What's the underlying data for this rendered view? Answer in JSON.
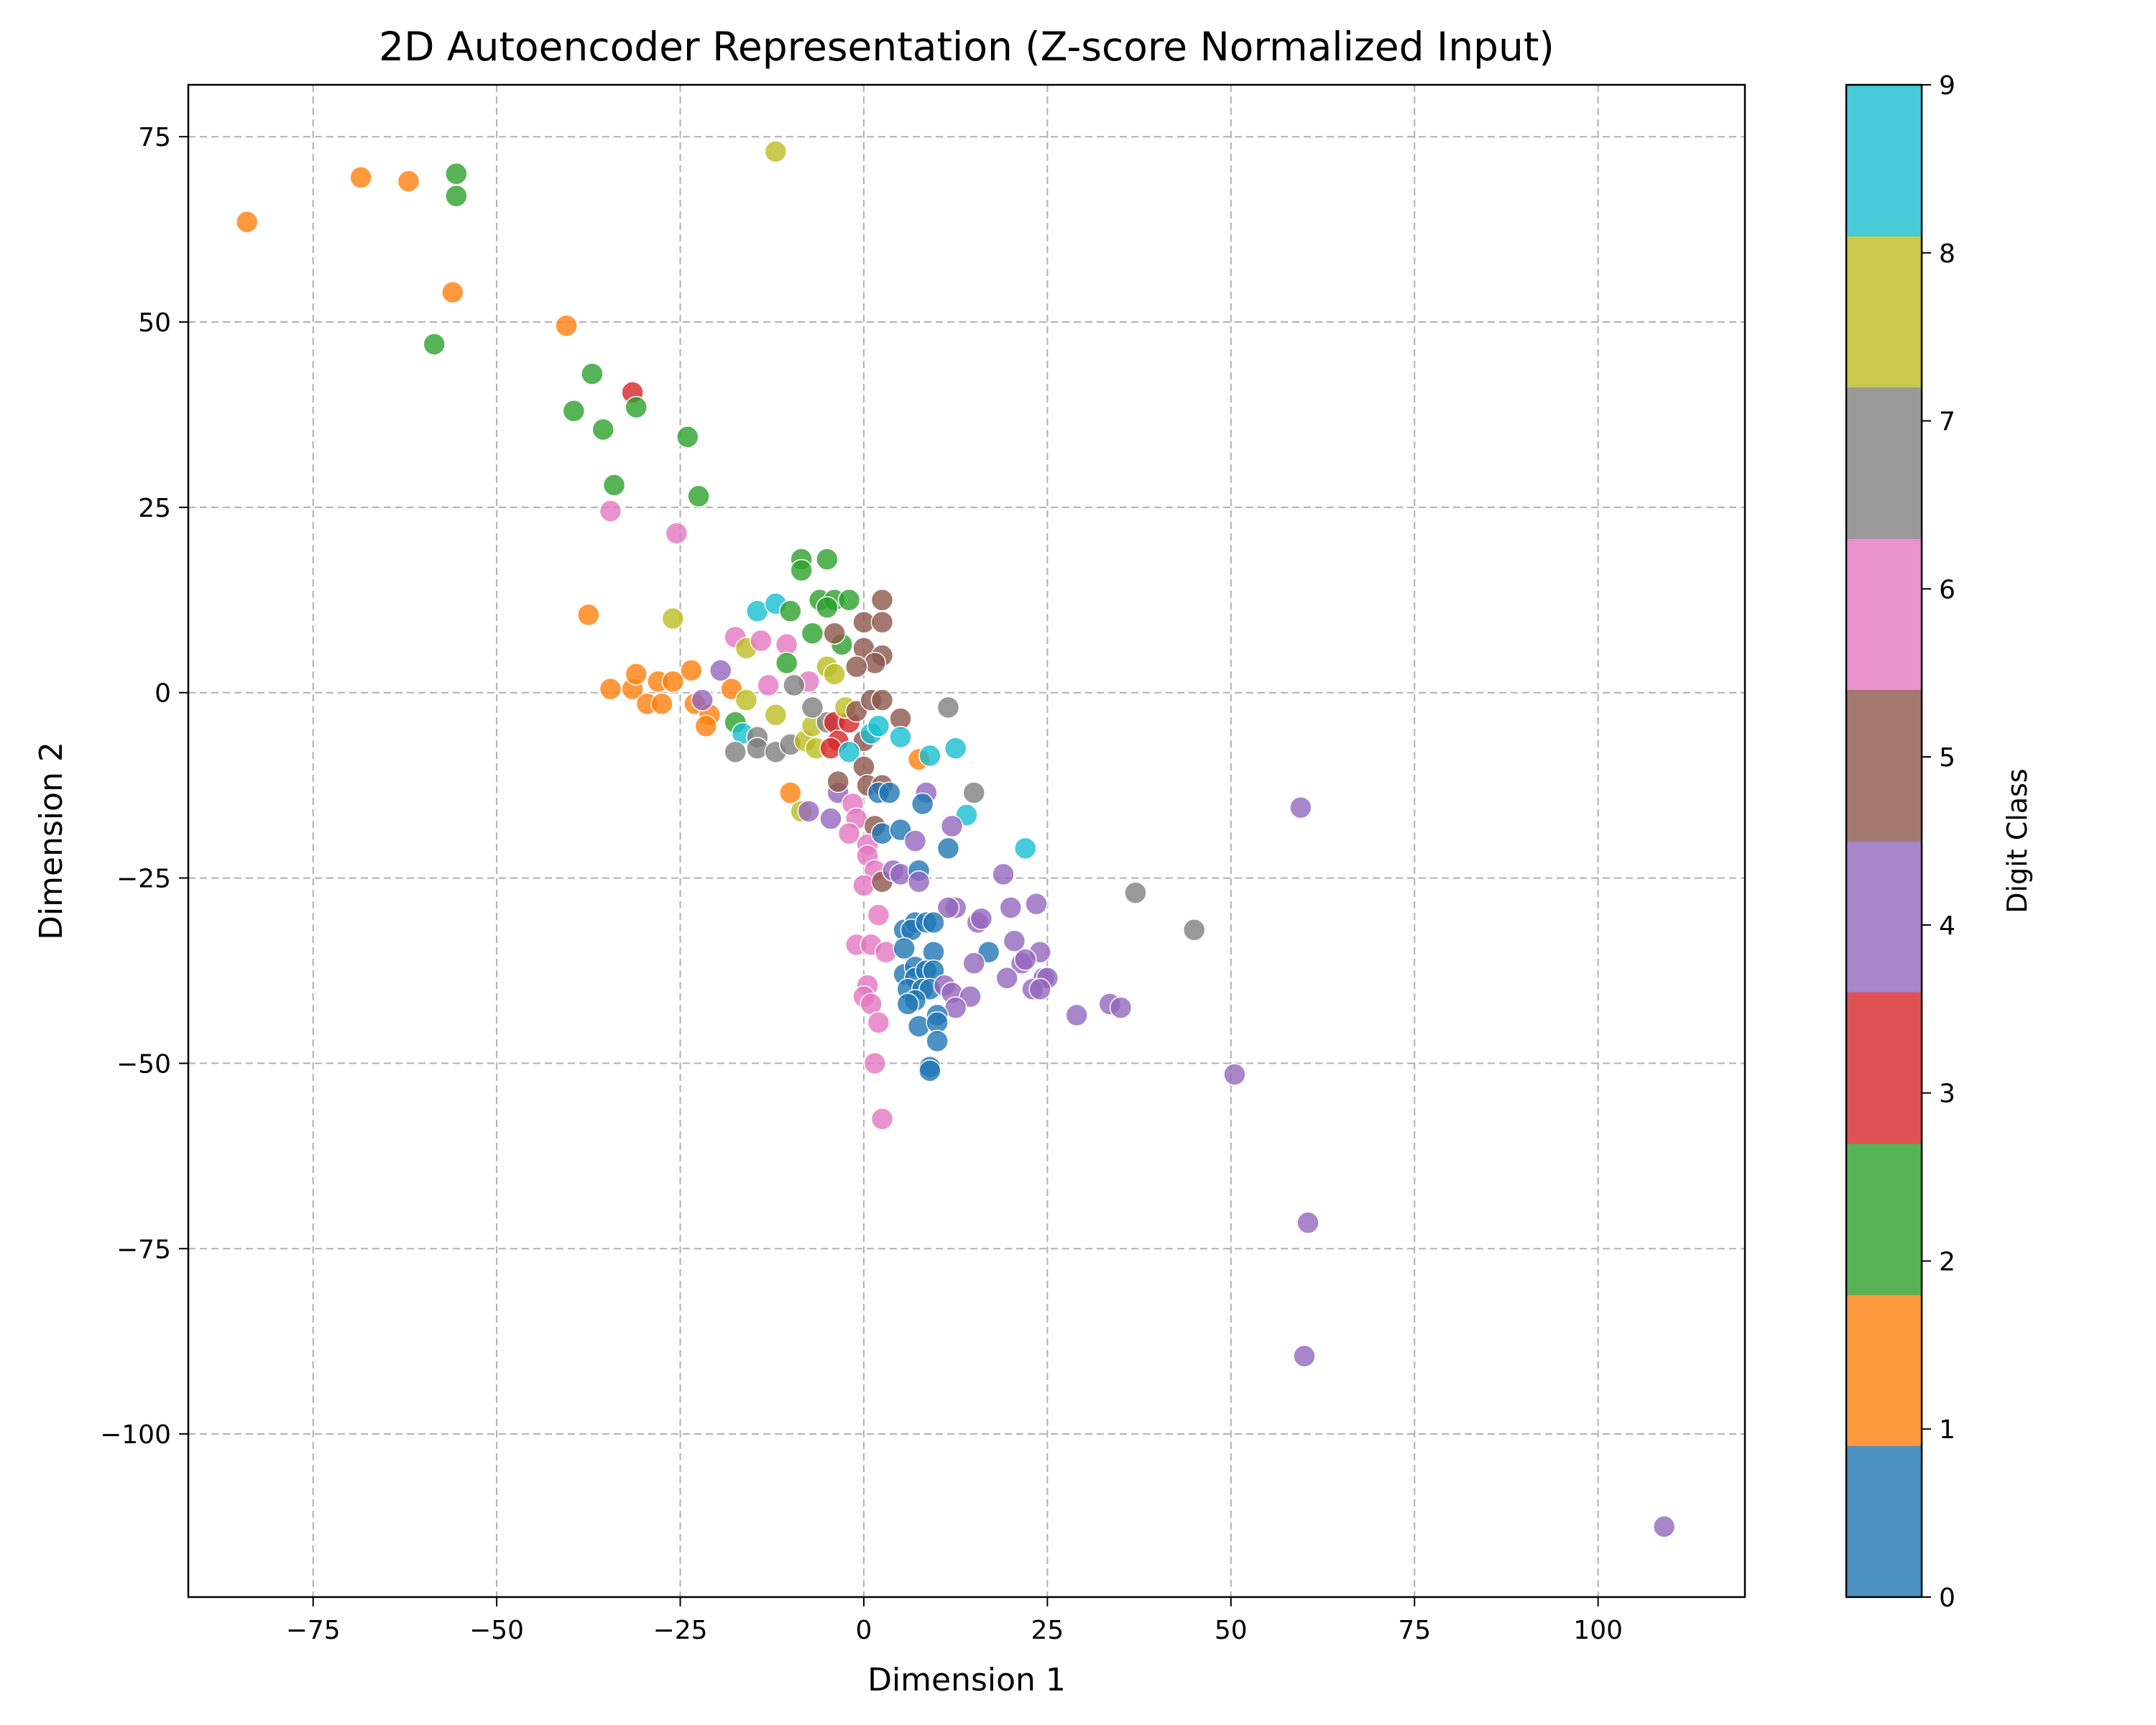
{
  "chart_data": {
    "type": "scatter",
    "title": "2D Autoencoder Representation (Z-score Normalized Input)",
    "xlabel": "Dimension 1",
    "ylabel": "Dimension 2",
    "xlim": [
      -92,
      120
    ],
    "ylim": [
      -122,
      82
    ],
    "x_ticks": [
      -75,
      -50,
      -25,
      0,
      25,
      50,
      75,
      100
    ],
    "y_ticks": [
      75,
      50,
      25,
      0,
      -25,
      -50,
      -75,
      -100
    ],
    "x_tick_labels": [
      "−75",
      "−50",
      "−25",
      "0",
      "25",
      "50",
      "75",
      "100"
    ],
    "y_tick_labels": [
      "75",
      "50",
      "25",
      "0",
      "−25",
      "−50",
      "−75",
      "−100"
    ],
    "grid": true,
    "colorbar": {
      "label": "Digit Class",
      "range": [
        0,
        9
      ],
      "tick_values": [
        0,
        1,
        2,
        3,
        4,
        5,
        6,
        7,
        8,
        9
      ],
      "tick_labels": [
        "0",
        "1",
        "2",
        "3",
        "4",
        "5",
        "6",
        "7",
        "8",
        "9"
      ],
      "colors": [
        "#1f77b4",
        "#ff7f0e",
        "#2ca02c",
        "#d62728",
        "#9467bd",
        "#8c564b",
        "#e377c2",
        "#7f7f7f",
        "#bcbd22",
        "#17becf"
      ]
    },
    "points": [
      {
        "x": -84,
        "y": 63.5,
        "c": 1
      },
      {
        "x": -68.5,
        "y": 69.5,
        "c": 1
      },
      {
        "x": -62,
        "y": 69,
        "c": 1
      },
      {
        "x": -55.5,
        "y": 70,
        "c": 2
      },
      {
        "x": -55.5,
        "y": 67,
        "c": 2
      },
      {
        "x": -56,
        "y": 54,
        "c": 1
      },
      {
        "x": -58.5,
        "y": 47,
        "c": 2
      },
      {
        "x": -40.5,
        "y": 49.5,
        "c": 1
      },
      {
        "x": -37,
        "y": 43,
        "c": 2
      },
      {
        "x": -39.5,
        "y": 38,
        "c": 2
      },
      {
        "x": -31.5,
        "y": 40.5,
        "c": 3
      },
      {
        "x": -31,
        "y": 38.5,
        "c": 2
      },
      {
        "x": -35.5,
        "y": 35.5,
        "c": 2
      },
      {
        "x": -24,
        "y": 34.5,
        "c": 2
      },
      {
        "x": -34,
        "y": 28,
        "c": 2
      },
      {
        "x": -22.5,
        "y": 26.5,
        "c": 2
      },
      {
        "x": -34.5,
        "y": 24.5,
        "c": 6
      },
      {
        "x": -25.5,
        "y": 21.5,
        "c": 6
      },
      {
        "x": -12,
        "y": 73,
        "c": 8
      },
      {
        "x": -37.5,
        "y": 10.5,
        "c": 1
      },
      {
        "x": -26,
        "y": 10,
        "c": 8
      },
      {
        "x": -34.5,
        "y": 0.5,
        "c": 1
      },
      {
        "x": -31.5,
        "y": 0.5,
        "c": 1
      },
      {
        "x": -31,
        "y": 2.5,
        "c": 1
      },
      {
        "x": -28,
        "y": 1.5,
        "c": 1
      },
      {
        "x": -26,
        "y": 1.5,
        "c": 1
      },
      {
        "x": -29.5,
        "y": -1.5,
        "c": 1
      },
      {
        "x": -27.5,
        "y": -1.5,
        "c": 1
      },
      {
        "x": -23.5,
        "y": 3,
        "c": 1
      },
      {
        "x": -23,
        "y": -1.5,
        "c": 1
      },
      {
        "x": -21,
        "y": -3,
        "c": 1
      },
      {
        "x": -21.5,
        "y": -4.5,
        "c": 1
      },
      {
        "x": -19.5,
        "y": 3,
        "c": 4
      },
      {
        "x": -17.5,
        "y": 7.5,
        "c": 6
      },
      {
        "x": -16,
        "y": 6,
        "c": 8
      },
      {
        "x": -14.5,
        "y": 11,
        "c": 9
      },
      {
        "x": -12,
        "y": 12,
        "c": 9
      },
      {
        "x": -10,
        "y": 11,
        "c": 2
      },
      {
        "x": -14,
        "y": 7,
        "c": 6
      },
      {
        "x": -10.5,
        "y": 6.5,
        "c": 6
      },
      {
        "x": -10.5,
        "y": 4,
        "c": 2
      },
      {
        "x": -8.5,
        "y": 18,
        "c": 2
      },
      {
        "x": -8.5,
        "y": 16.5,
        "c": 2
      },
      {
        "x": -5,
        "y": 18,
        "c": 2
      },
      {
        "x": -6,
        "y": 12.5,
        "c": 2
      },
      {
        "x": -4,
        "y": 12.5,
        "c": 2
      },
      {
        "x": -5,
        "y": 11.5,
        "c": 2
      },
      {
        "x": -2,
        "y": 12.5,
        "c": 2
      },
      {
        "x": -7,
        "y": 8,
        "c": 2
      },
      {
        "x": -3,
        "y": 6.5,
        "c": 2
      },
      {
        "x": -4,
        "y": 8,
        "c": 5
      },
      {
        "x": 2.5,
        "y": 12.5,
        "c": 5
      },
      {
        "x": 0,
        "y": 9.5,
        "c": 5
      },
      {
        "x": 2.5,
        "y": 9.5,
        "c": 5
      },
      {
        "x": 0,
        "y": 6,
        "c": 5
      },
      {
        "x": 2.5,
        "y": 5,
        "c": 5
      },
      {
        "x": 1.5,
        "y": 4,
        "c": 5
      },
      {
        "x": -1,
        "y": 3.5,
        "c": 5
      },
      {
        "x": -5,
        "y": 3.5,
        "c": 8
      },
      {
        "x": -4,
        "y": 2.5,
        "c": 8
      },
      {
        "x": -7.5,
        "y": 1.5,
        "c": 6
      },
      {
        "x": -9.5,
        "y": 1,
        "c": 7
      },
      {
        "x": -13,
        "y": 1,
        "c": 6
      },
      {
        "x": -18,
        "y": 0.5,
        "c": 1
      },
      {
        "x": -16,
        "y": -1,
        "c": 8
      },
      {
        "x": -22,
        "y": -1,
        "c": 4
      },
      {
        "x": -17.5,
        "y": -4,
        "c": 2
      },
      {
        "x": -16.5,
        "y": -5.5,
        "c": 9
      },
      {
        "x": -14.5,
        "y": -6,
        "c": 7
      },
      {
        "x": -17.5,
        "y": -8,
        "c": 7
      },
      {
        "x": -14.5,
        "y": -7.5,
        "c": 7
      },
      {
        "x": -12,
        "y": -8,
        "c": 7
      },
      {
        "x": -12,
        "y": -3,
        "c": 8
      },
      {
        "x": -10,
        "y": -7,
        "c": 7
      },
      {
        "x": -8,
        "y": -6.5,
        "c": 8
      },
      {
        "x": -6.5,
        "y": -7.5,
        "c": 8
      },
      {
        "x": -7,
        "y": -4.5,
        "c": 8
      },
      {
        "x": -5,
        "y": -4,
        "c": 7
      },
      {
        "x": -7,
        "y": -2,
        "c": 7
      },
      {
        "x": -4,
        "y": -4,
        "c": 3
      },
      {
        "x": -2,
        "y": -4,
        "c": 3
      },
      {
        "x": -3.5,
        "y": -6.5,
        "c": 3
      },
      {
        "x": -4.5,
        "y": -7.5,
        "c": 3
      },
      {
        "x": -2.5,
        "y": -2,
        "c": 8
      },
      {
        "x": -1,
        "y": -2.5,
        "c": 5
      },
      {
        "x": 1,
        "y": -1,
        "c": 5
      },
      {
        "x": 2.5,
        "y": -1,
        "c": 5
      },
      {
        "x": 0,
        "y": -6.5,
        "c": 5
      },
      {
        "x": -2,
        "y": -8,
        "c": 9
      },
      {
        "x": 0,
        "y": -10,
        "c": 5
      },
      {
        "x": 1,
        "y": -5.5,
        "c": 9
      },
      {
        "x": 2,
        "y": -4.5,
        "c": 9
      },
      {
        "x": 5,
        "y": -3.5,
        "c": 5
      },
      {
        "x": 5,
        "y": -6,
        "c": 9
      },
      {
        "x": 7.5,
        "y": -9,
        "c": 1
      },
      {
        "x": 9,
        "y": -8.5,
        "c": 9
      },
      {
        "x": 12.5,
        "y": -7.5,
        "c": 9
      },
      {
        "x": 11.5,
        "y": -2,
        "c": 7
      },
      {
        "x": 15,
        "y": -13.5,
        "c": 7
      },
      {
        "x": 14,
        "y": -16.5,
        "c": 9
      },
      {
        "x": 22,
        "y": -21,
        "c": 9
      },
      {
        "x": -10,
        "y": -13.5,
        "c": 1
      },
      {
        "x": -8.5,
        "y": -16,
        "c": 8
      },
      {
        "x": -7.5,
        "y": -16,
        "c": 4
      },
      {
        "x": -4.5,
        "y": -17,
        "c": 4
      },
      {
        "x": -3.5,
        "y": -13.5,
        "c": 4
      },
      {
        "x": -3.5,
        "y": -12,
        "c": 5
      },
      {
        "x": -1.5,
        "y": -15,
        "c": 6
      },
      {
        "x": -1,
        "y": -17,
        "c": 6
      },
      {
        "x": 0.5,
        "y": -12.5,
        "c": 5
      },
      {
        "x": 2.5,
        "y": -12.5,
        "c": 5
      },
      {
        "x": 2,
        "y": -13.5,
        "c": 0
      },
      {
        "x": 3.5,
        "y": -13.5,
        "c": 0
      },
      {
        "x": 8.5,
        "y": -13.5,
        "c": 4
      },
      {
        "x": 8,
        "y": -15,
        "c": 0
      },
      {
        "x": 1.5,
        "y": -18,
        "c": 5
      },
      {
        "x": -2,
        "y": -19,
        "c": 6
      },
      {
        "x": 0.5,
        "y": -20.5,
        "c": 6
      },
      {
        "x": 2.5,
        "y": -19,
        "c": 0
      },
      {
        "x": 5,
        "y": -18.5,
        "c": 0
      },
      {
        "x": 7,
        "y": -20,
        "c": 4
      },
      {
        "x": 12,
        "y": -18,
        "c": 4
      },
      {
        "x": 11.5,
        "y": -21,
        "c": 0
      },
      {
        "x": 0.5,
        "y": -22,
        "c": 6
      },
      {
        "x": 1.5,
        "y": -24,
        "c": 6
      },
      {
        "x": 0,
        "y": -26,
        "c": 6
      },
      {
        "x": 2.5,
        "y": -25.5,
        "c": 5
      },
      {
        "x": 4,
        "y": -24,
        "c": 4
      },
      {
        "x": 5,
        "y": -24.5,
        "c": 4
      },
      {
        "x": 7.5,
        "y": -24,
        "c": 0
      },
      {
        "x": 7.5,
        "y": -25.5,
        "c": 4
      },
      {
        "x": 19,
        "y": -24.5,
        "c": 4
      },
      {
        "x": 2,
        "y": -30,
        "c": 6
      },
      {
        "x": 12.5,
        "y": -29,
        "c": 4
      },
      {
        "x": 11.5,
        "y": -29,
        "c": 4
      },
      {
        "x": 20,
        "y": -29,
        "c": 4
      },
      {
        "x": 23.5,
        "y": -28.5,
        "c": 4
      },
      {
        "x": 15.5,
        "y": -31,
        "c": 4
      },
      {
        "x": 16,
        "y": -30.5,
        "c": 4
      },
      {
        "x": 5.5,
        "y": -32,
        "c": 0
      },
      {
        "x": 7,
        "y": -31,
        "c": 0
      },
      {
        "x": 6.5,
        "y": -32,
        "c": 0
      },
      {
        "x": 8.5,
        "y": -31,
        "c": 0
      },
      {
        "x": 9.5,
        "y": -31,
        "c": 0
      },
      {
        "x": 20.5,
        "y": -33.5,
        "c": 4
      },
      {
        "x": -1,
        "y": -34,
        "c": 6
      },
      {
        "x": 1,
        "y": -34,
        "c": 6
      },
      {
        "x": 3,
        "y": -35,
        "c": 6
      },
      {
        "x": 5.5,
        "y": -34.5,
        "c": 0
      },
      {
        "x": 9.5,
        "y": -35,
        "c": 0
      },
      {
        "x": 17,
        "y": -35,
        "c": 0
      },
      {
        "x": 15,
        "y": -36.5,
        "c": 4
      },
      {
        "x": 24,
        "y": -35,
        "c": 4
      },
      {
        "x": 21.5,
        "y": -36.5,
        "c": 4
      },
      {
        "x": 22,
        "y": -36,
        "c": 4
      },
      {
        "x": 5.5,
        "y": -38,
        "c": 0
      },
      {
        "x": 7,
        "y": -37,
        "c": 0
      },
      {
        "x": 7,
        "y": -38.5,
        "c": 0
      },
      {
        "x": 8.5,
        "y": -37.5,
        "c": 0
      },
      {
        "x": 9.5,
        "y": -37.5,
        "c": 0
      },
      {
        "x": 19.5,
        "y": -38.5,
        "c": 4
      },
      {
        "x": 24.5,
        "y": -38.5,
        "c": 4
      },
      {
        "x": 25,
        "y": -38.5,
        "c": 4
      },
      {
        "x": 0.5,
        "y": -39.5,
        "c": 6
      },
      {
        "x": 6,
        "y": -40,
        "c": 0
      },
      {
        "x": 8,
        "y": -40,
        "c": 0
      },
      {
        "x": 9,
        "y": -40,
        "c": 0
      },
      {
        "x": 11,
        "y": -39.5,
        "c": 4
      },
      {
        "x": 12,
        "y": -40.5,
        "c": 4
      },
      {
        "x": 23,
        "y": -40,
        "c": 4
      },
      {
        "x": 24,
        "y": -40,
        "c": 4
      },
      {
        "x": 0,
        "y": -41,
        "c": 6
      },
      {
        "x": 1,
        "y": -42,
        "c": 6
      },
      {
        "x": 7,
        "y": -41.5,
        "c": 0
      },
      {
        "x": 6,
        "y": -42,
        "c": 0
      },
      {
        "x": 14.5,
        "y": -41,
        "c": 4
      },
      {
        "x": 12.5,
        "y": -42.5,
        "c": 4
      },
      {
        "x": 33.5,
        "y": -42,
        "c": 4
      },
      {
        "x": 35,
        "y": -42.5,
        "c": 4
      },
      {
        "x": 29,
        "y": -43.5,
        "c": 4
      },
      {
        "x": 2,
        "y": -44.5,
        "c": 6
      },
      {
        "x": 10,
        "y": -43.5,
        "c": 0
      },
      {
        "x": 7.5,
        "y": -45,
        "c": 0
      },
      {
        "x": 10,
        "y": -44.5,
        "c": 0
      },
      {
        "x": 10,
        "y": -47,
        "c": 0
      },
      {
        "x": 1.5,
        "y": -50,
        "c": 6
      },
      {
        "x": 9,
        "y": -50.5,
        "c": 0
      },
      {
        "x": 9,
        "y": -51,
        "c": 0
      },
      {
        "x": 2.5,
        "y": -57.5,
        "c": 6
      },
      {
        "x": 37,
        "y": -27,
        "c": 7
      },
      {
        "x": 45,
        "y": -32,
        "c": 7
      },
      {
        "x": 59.5,
        "y": -15.5,
        "c": 4
      },
      {
        "x": 50.5,
        "y": -51.5,
        "c": 4
      },
      {
        "x": 60.5,
        "y": -71.5,
        "c": 4
      },
      {
        "x": 60,
        "y": -89.5,
        "c": 4
      },
      {
        "x": 109,
        "y": -112.5,
        "c": 4
      }
    ]
  }
}
